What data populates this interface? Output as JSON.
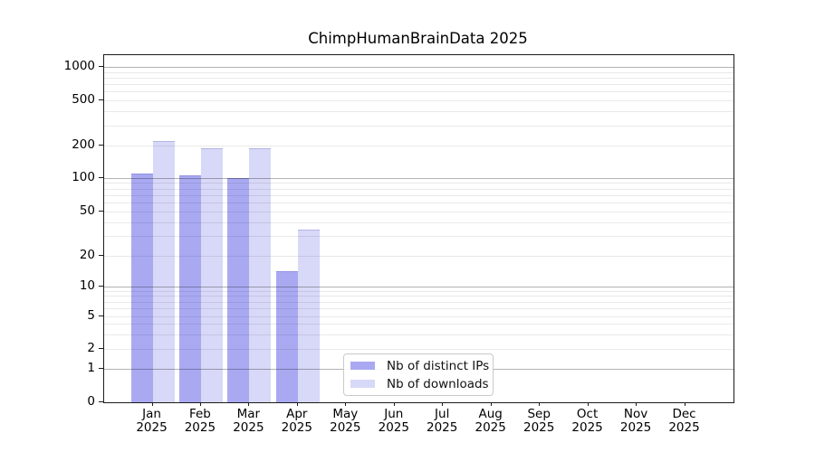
{
  "chart_data": {
    "type": "bar",
    "title": "ChimpHumanBrainData 2025",
    "year_label": "2025",
    "categories": [
      "Jan",
      "Feb",
      "Mar",
      "Apr",
      "May",
      "Jun",
      "Jul",
      "Aug",
      "Sep",
      "Oct",
      "Nov",
      "Dec"
    ],
    "series": [
      {
        "name": "Nb of distinct IPs",
        "color": "#a9a9f2",
        "values": [
          110,
          105,
          100,
          14,
          0,
          0,
          0,
          0,
          0,
          0,
          0,
          0
        ]
      },
      {
        "name": "Nb of downloads",
        "color": "#d8d8f8",
        "values": [
          220,
          190,
          190,
          34,
          0,
          0,
          0,
          0,
          0,
          0,
          0,
          0
        ]
      }
    ],
    "xlabel": "",
    "ylabel": "",
    "y_ticks": [
      0,
      1,
      2,
      5,
      10,
      20,
      50,
      100,
      200,
      500,
      1000
    ],
    "y_major_ticks": [
      1,
      10,
      100,
      1000
    ],
    "y_minor_gridlines": [
      3,
      4,
      6,
      7,
      8,
      9,
      30,
      40,
      60,
      70,
      80,
      90,
      300,
      400,
      600,
      700,
      800,
      900
    ],
    "y_scale": "log (linear below 1)",
    "ylim": [
      0,
      1300
    ],
    "grid": "on",
    "legend_position": "lower center inside plot"
  }
}
